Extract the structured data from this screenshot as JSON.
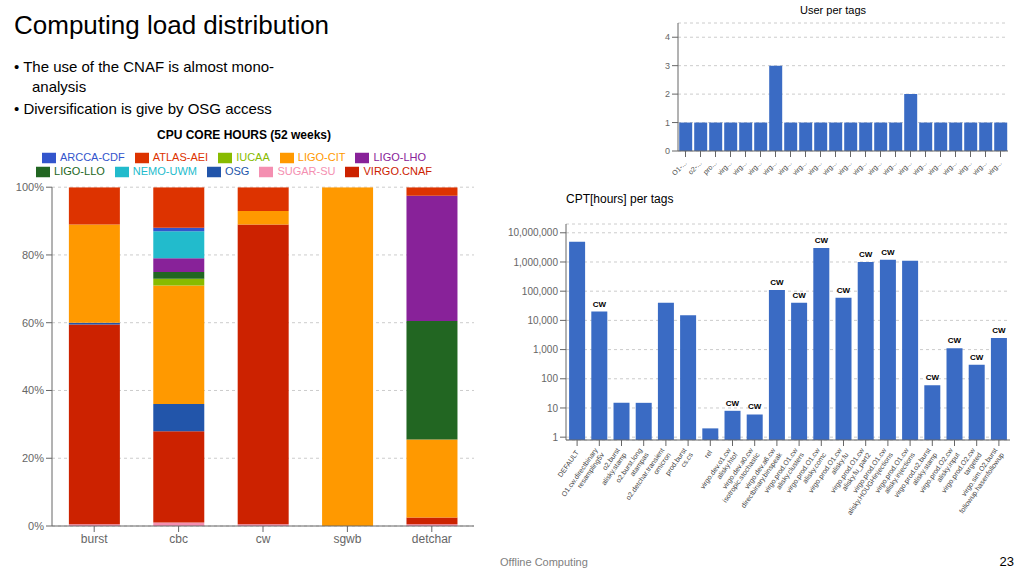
{
  "title": "Computing load distribution",
  "annotations": [
    "• The use of the CNAF is almost mono-",
    "analysis",
    "• Diversification is give by OSG access",
    "Offline Computing",
    "23"
  ],
  "chart_data": [
    {
      "type": "bar",
      "title": "CPU CORE HOURS (52 weeks)",
      "stacked": true,
      "grid": true,
      "legend": "top",
      "categories": [
        "burst",
        "cbc",
        "cw",
        "sgwb",
        "detchar"
      ],
      "ylim": [
        0,
        100
      ],
      "yticks": [
        {
          "value": 0,
          "label": "0%"
        },
        {
          "value": 20,
          "label": "20%"
        },
        {
          "value": 40,
          "label": "40%"
        },
        {
          "value": 60,
          "label": "60%"
        },
        {
          "value": 80,
          "label": "80%"
        },
        {
          "value": 100,
          "label": "100%"
        }
      ],
      "series": [
        {
          "name": "SUGAR-SU",
          "color": "#f48fb1",
          "values": [
            0.5,
            1.0,
            0.5,
            0.0,
            0.5
          ]
        },
        {
          "name": "VIRGO.CNAF",
          "color": "#cc2200",
          "values": [
            59.0,
            27.0,
            88.5,
            0.0,
            2.0
          ]
        },
        {
          "name": "OSG",
          "color": "#2255aa",
          "values": [
            0.5,
            8.0,
            0.0,
            0.0,
            0.0
          ]
        },
        {
          "name": "LIGO-CIT",
          "color": "#ff9900",
          "values": [
            29.0,
            35.0,
            4.0,
            100.0,
            23.0
          ]
        },
        {
          "name": "IUCAA",
          "color": "#88bb00",
          "values": [
            0.0,
            2.0,
            0.0,
            0.0,
            0.0
          ]
        },
        {
          "name": "LIGO-LLO",
          "color": "#226622",
          "values": [
            0.0,
            2.0,
            0.0,
            0.0,
            35.0
          ]
        },
        {
          "name": "LIGO-LHO",
          "color": "#882299",
          "values": [
            0.0,
            4.0,
            0.0,
            0.0,
            37.0
          ]
        },
        {
          "name": "NEMO-UWM",
          "color": "#22bbcc",
          "values": [
            0.0,
            8.0,
            0.0,
            0.0,
            0.0
          ]
        },
        {
          "name": "ARCCA-CDF",
          "color": "#3355cc",
          "values": [
            0.0,
            1.0,
            0.0,
            0.0,
            0.0
          ]
        },
        {
          "name": "ATLAS-AEI",
          "color": "#dd3300",
          "values": [
            11.0,
            12.0,
            7.0,
            0.0,
            2.5
          ]
        }
      ]
    },
    {
      "type": "bar",
      "title": "CPT[hours] per tags",
      "log": "y",
      "grid": true,
      "color": "#3a6bc4",
      "categories": [
        "DEFAULT",
        "O1.cw.directbinary\nresampling5v",
        "o2.burst\nalisky.stamp",
        "o2.burst.long\natampas",
        "o2.detchar.transient\nomicron",
        "prod.burst\ncs.cs",
        "rel",
        "virgo.dev.o1.cw\nalisky.htof",
        "virgo.dev.a0.cw\nisotropic.stochastic",
        "virgo.dev.a6.cw\ndirectbinary.binspeak",
        "virgo.prod.O1.cw\nalisky.clusters",
        "virgo.prod.O1.cw\nalisky.comc",
        "virgo.prod.O1.cw\nalisky.fu",
        "virgo.prod.O1.cw\nalisky.fu_part2",
        "virgo.prod.O1.cw\nalisky.HOUGHinjections",
        "virgo.prod.O1.cw\nalisky.injections",
        "virgo.prod.o2.burst\nalisky.stamp",
        "virgo.prod.O2.cw\nalisky.input",
        "virgo.prod.O2.cw\ntargeted",
        "virgo.sim.O2.burst\nfollowup.hasenfollowup"
      ],
      "values": [
        4900000,
        20000,
        15,
        15,
        40000,
        15000,
        2,
        8,
        6,
        110000,
        40000,
        3000000,
        60000,
        1000000,
        1200000,
        1100000,
        60,
        1100,
        300,
        2500
      ],
      "ylim": [
        0.8,
        20000000
      ],
      "yticks": [
        1,
        10,
        100,
        {
          "value": 1000,
          "label": "1,000"
        },
        {
          "value": 10000,
          "label": "10,000"
        },
        {
          "value": 100000,
          "label": "100,000"
        },
        {
          "value": 1000000,
          "label": "1,000,000"
        },
        {
          "value": 10000000,
          "label": "10,000,000"
        }
      ],
      "annotations": [
        {
          "text": "CW",
          "x": "O1.cw.directbinary\nresampling5v"
        },
        {
          "text": "CW",
          "x": "virgo.dev.o1.cw\nalisky.htof"
        },
        {
          "text": "CW",
          "x": "virgo.dev.a0.cw\nisotropic.stochastic"
        },
        {
          "text": "CW",
          "x": "virgo.dev.a6.cw\ndirectbinary.binspeak"
        },
        {
          "text": "CW",
          "x": "virgo.prod.O1.cw\nalisky.clusters"
        },
        {
          "text": "CW",
          "x": "virgo.prod.O1.cw\nalisky.comc"
        },
        {
          "text": "CW",
          "x": "virgo.prod.O1.cw\nalisky.fu"
        },
        {
          "text": "CW",
          "x": "virgo.prod.O1.cw\nalisky.fu_part2"
        },
        {
          "text": "CW",
          "x": "virgo.prod.O1.cw\nalisky.HOUGHinjections"
        },
        {
          "text": "CW",
          "x": "virgo.prod.o2.burst\nalisky.stamp"
        },
        {
          "text": "CW",
          "x": "virgo.prod.O2.cw\nalisky.input"
        },
        {
          "text": "CW",
          "x": "virgo.prod.O2.cw\ntargeted"
        },
        {
          "text": "CW",
          "x": "virgo.sim.O2.burst\nfollowup.hasenfollowup"
        }
      ]
    },
    {
      "type": "bar",
      "title": "User per tags",
      "grid": true,
      "color": "#3a6bc4",
      "categories": [
        "O1-...",
        "o2-...",
        "pro...",
        "virg...",
        "virg...",
        "virg...",
        "virg...",
        "virg...",
        "virg...",
        "virg...",
        "virg...",
        "virg...",
        "virg...",
        "virg...",
        "virg...",
        "virg...",
        "virg...",
        "virg...",
        "virg...",
        "virg...",
        "virg...",
        "virg..."
      ],
      "values": [
        1,
        1,
        1,
        1,
        1,
        1,
        3,
        1,
        1,
        1,
        1,
        1,
        1,
        1,
        1,
        2,
        1,
        1,
        1,
        1,
        1,
        1
      ],
      "ylim": [
        0,
        4.5
      ],
      "yticks": [
        0,
        1,
        2,
        3,
        4
      ]
    }
  ]
}
